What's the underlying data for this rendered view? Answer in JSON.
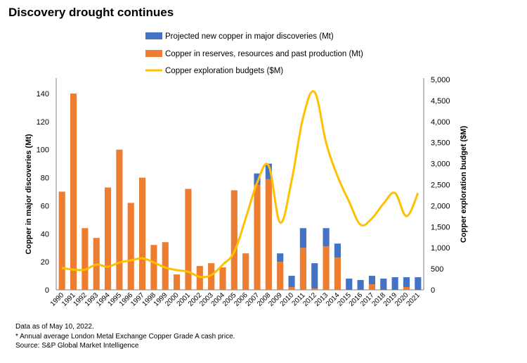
{
  "title": "Discovery drought continues",
  "chart_data": {
    "type": "bar",
    "stacked": true,
    "categories": [
      "1990",
      "1991",
      "1992",
      "1993",
      "1994",
      "1995",
      "1996",
      "1997",
      "1998",
      "1999",
      "2000",
      "2001",
      "2002",
      "2003",
      "2004",
      "2005",
      "2006",
      "2007",
      "2008",
      "2009",
      "2010",
      "2011",
      "2012",
      "2013",
      "2014",
      "2015",
      "2016",
      "2017",
      "2018",
      "2019",
      "2020",
      "2021"
    ],
    "series": [
      {
        "name": "Projected new copper in major discoveries (Mt)",
        "color": "#4472c4",
        "axis": "left",
        "values": [
          0,
          0,
          0,
          0,
          0,
          0,
          0,
          0,
          0,
          0,
          0,
          0,
          0,
          0,
          0,
          0,
          0,
          8,
          11,
          6,
          8,
          14,
          18,
          13,
          10,
          8,
          7,
          6,
          8,
          9,
          7,
          9
        ]
      },
      {
        "name": "Copper in reserves, resources and past production (Mt)",
        "color": "#ed7d31",
        "axis": "left",
        "values": [
          70,
          140,
          44,
          37,
          73,
          100,
          62,
          80,
          32,
          34,
          11,
          72,
          17,
          19,
          16,
          71,
          26,
          75,
          79,
          20,
          2,
          30,
          1,
          31,
          23,
          0,
          0,
          4,
          0,
          0,
          2,
          0
        ]
      },
      {
        "name": "Copper exploration budgets ($M)",
        "type": "line",
        "color": "#ffc000",
        "axis": "right",
        "values": [
          520,
          480,
          480,
          600,
          550,
          650,
          700,
          750,
          650,
          530,
          470,
          430,
          310,
          350,
          600,
          900,
          1700,
          2550,
          2950,
          1600,
          2600,
          4100,
          4700,
          3500,
          2700,
          2100,
          1550,
          1700,
          2050,
          2300,
          1750,
          2300
        ]
      }
    ],
    "ylabel": "Copper in major discoveries (Mt)",
    "ylim": [
      0,
      150
    ],
    "yticks": [
      0,
      20,
      40,
      60,
      80,
      100,
      120,
      140
    ],
    "y2label": "Copper exploration budget ($M)",
    "y2lim": [
      0,
      5000
    ],
    "y2ticks": [
      "0",
      "500",
      "1,000",
      "1,500",
      "2,000",
      "2,500",
      "3,000",
      "3,500",
      "4,000",
      "4,500",
      "5,000"
    ],
    "legend_position": "top-center",
    "grid": false
  },
  "footer": {
    "line1": "Data as of May 10, 2022.",
    "line2": "* Annual average London Metal Exchange Copper Grade A cash price.",
    "line3": "Source: S&P Global Market Intelligence"
  }
}
